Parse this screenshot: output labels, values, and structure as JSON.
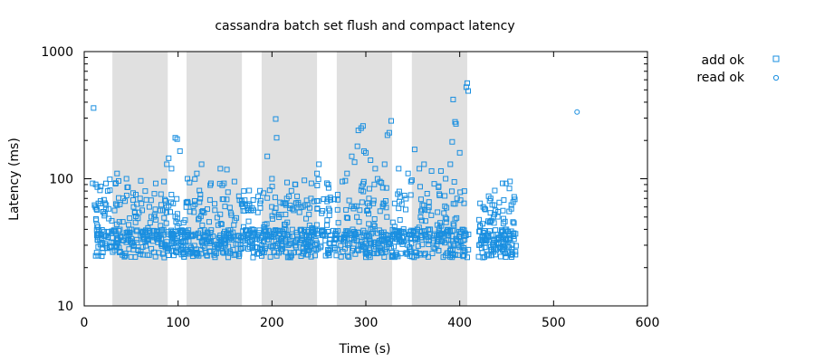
{
  "chart_data": {
    "type": "scatter",
    "title": "cassandra batch set flush and compact latency",
    "xlabel": "Time (s)",
    "ylabel": "Latency (ms)",
    "x_scale": "linear",
    "y_scale": "log",
    "xlim": [
      0,
      600
    ],
    "ylim": [
      10,
      1000
    ],
    "x_ticks": [
      0,
      100,
      200,
      300,
      400,
      500,
      600
    ],
    "x_tick_labels": [
      "0",
      "100",
      "200",
      "300",
      "400",
      "500",
      "600"
    ],
    "y_ticks": [
      10,
      100,
      1000
    ],
    "y_tick_labels": [
      "10",
      "100",
      "1000"
    ],
    "grid": false,
    "legend_position": "outside-top-right",
    "colors": {
      "series": "#1a8fe0",
      "shading": "#e0e0e0",
      "frame": "#000000"
    },
    "shaded_intervals": [
      [
        30,
        89
      ],
      [
        109,
        168
      ],
      [
        189,
        248
      ],
      [
        269,
        328
      ],
      [
        349,
        408
      ]
    ],
    "series": [
      {
        "name": "add ok",
        "marker": "square",
        "color": "#1a8fe0",
        "distribution_note": "dense cluster of thousands of points, sampled here; x 10-460 s, baseline 24-40 ms, frequent 50-130 ms, outliers listed below",
        "points": [
          [
            10,
            360
          ],
          [
            9,
            92
          ],
          [
            11,
            62
          ],
          [
            12,
            60
          ],
          [
            13,
            58
          ],
          [
            14,
            86
          ],
          [
            15,
            64
          ],
          [
            20,
            55
          ],
          [
            25,
            80
          ],
          [
            35,
            110
          ],
          [
            45,
            100
          ],
          [
            55,
            75
          ],
          [
            65,
            80
          ],
          [
            75,
            52
          ],
          [
            85,
            95
          ],
          [
            88,
            130
          ],
          [
            90,
            145
          ],
          [
            93,
            120
          ],
          [
            97,
            210
          ],
          [
            99,
            205
          ],
          [
            102,
            165
          ],
          [
            110,
            100
          ],
          [
            120,
            110
          ],
          [
            125,
            130
          ],
          [
            135,
            92
          ],
          [
            145,
            120
          ],
          [
            152,
            118
          ],
          [
            160,
            95
          ],
          [
            170,
            80
          ],
          [
            180,
            68
          ],
          [
            195,
            150
          ],
          [
            200,
            100
          ],
          [
            204,
            295
          ],
          [
            205,
            210
          ],
          [
            215,
            62
          ],
          [
            225,
            90
          ],
          [
            235,
            62
          ],
          [
            242,
            92
          ],
          [
            248,
            110
          ],
          [
            250,
            130
          ],
          [
            260,
            90
          ],
          [
            270,
            75
          ],
          [
            275,
            95
          ],
          [
            280,
            110
          ],
          [
            285,
            150
          ],
          [
            288,
            135
          ],
          [
            291,
            180
          ],
          [
            292,
            240
          ],
          [
            295,
            250
          ],
          [
            297,
            260
          ],
          [
            298,
            165
          ],
          [
            300,
            160
          ],
          [
            305,
            140
          ],
          [
            310,
            120
          ],
          [
            315,
            95
          ],
          [
            320,
            130
          ],
          [
            323,
            220
          ],
          [
            325,
            230
          ],
          [
            327,
            285
          ],
          [
            335,
            120
          ],
          [
            345,
            110
          ],
          [
            348,
            95
          ],
          [
            352,
            170
          ],
          [
            357,
            120
          ],
          [
            362,
            130
          ],
          [
            370,
            115
          ],
          [
            380,
            115
          ],
          [
            385,
            100
          ],
          [
            390,
            130
          ],
          [
            392,
            195
          ],
          [
            393,
            420
          ],
          [
            395,
            280
          ],
          [
            396,
            270
          ],
          [
            400,
            160
          ],
          [
            405,
            80
          ],
          [
            407,
            525
          ],
          [
            408,
            565
          ],
          [
            409,
            490
          ],
          [
            425,
            60
          ],
          [
            433,
            70
          ],
          [
            437,
            62
          ],
          [
            441,
            55
          ],
          [
            447,
            68
          ],
          [
            455,
            58
          ],
          [
            458,
            72
          ]
        ]
      },
      {
        "name": "read ok",
        "marker": "circle",
        "color": "#1a8fe0",
        "points": [
          [
            525,
            335
          ]
        ]
      }
    ]
  }
}
